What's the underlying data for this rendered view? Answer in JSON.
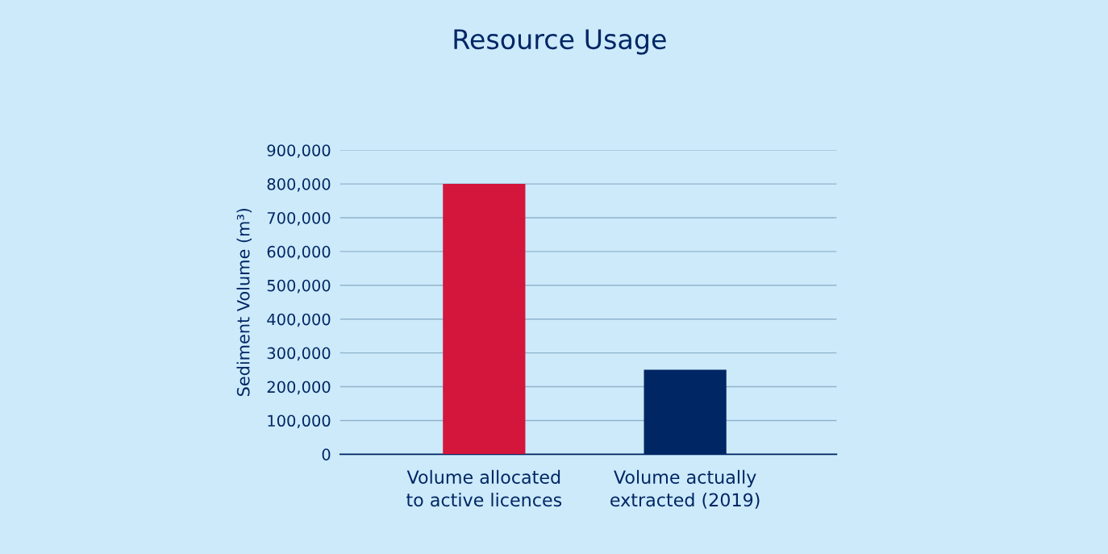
{
  "chart_data": {
    "type": "bar",
    "title": "Resource Usage",
    "ylabel": "Sediment Volume (m³)",
    "categories": [
      "Volume allocated\nto active licences",
      "Volume actually\nextracted (2019)"
    ],
    "values": [
      800000,
      250000
    ],
    "colors": [
      "#d4163c",
      "#002664"
    ],
    "ylim": [
      0,
      900000
    ],
    "yticks": [
      {
        "value": 0,
        "label": "0"
      },
      {
        "value": 100000,
        "label": "100,000"
      },
      {
        "value": 200000,
        "label": "200,000"
      },
      {
        "value": 300000,
        "label": "300,000"
      },
      {
        "value": 400000,
        "label": "400,000"
      },
      {
        "value": 500000,
        "label": "500,000"
      },
      {
        "value": 600000,
        "label": "600,000"
      },
      {
        "value": 700000,
        "label": "700,000"
      },
      {
        "value": 800000,
        "label": "800,000"
      },
      {
        "value": 900000,
        "label": "900,000"
      }
    ],
    "grid": "y",
    "legend": false
  }
}
